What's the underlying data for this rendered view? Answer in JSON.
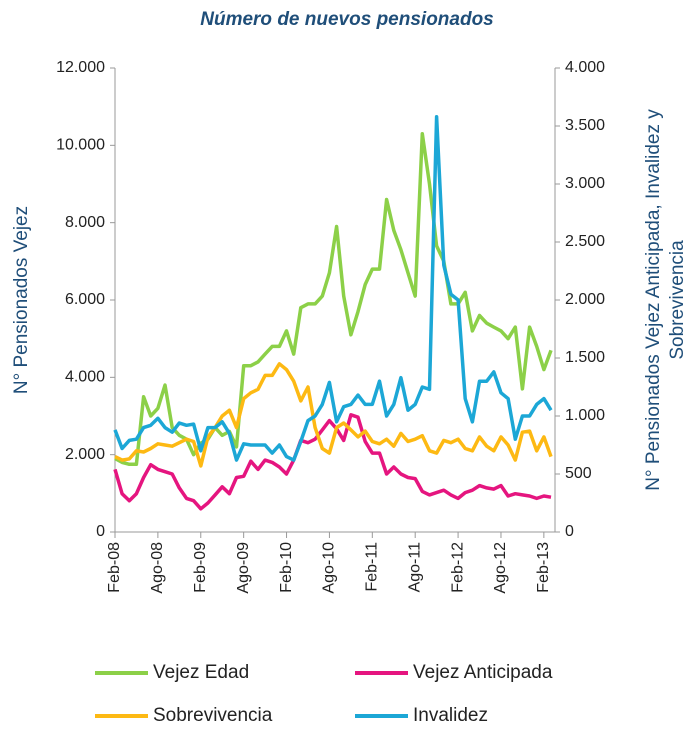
{
  "chart_data": {
    "type": "line",
    "title": "Número de nuevos pensionados",
    "ylabel": "N° Pensionados Vejez",
    "y2label": [
      "N° Pensionados Vejez Anticipada, Invalidez y",
      "Sobrevivencia"
    ],
    "categories": [
      "Feb-08",
      null,
      null,
      null,
      null,
      null,
      "Ago-08",
      null,
      null,
      null,
      null,
      null,
      "Feb-09",
      null,
      null,
      null,
      null,
      null,
      "Ago-09",
      null,
      null,
      null,
      null,
      null,
      "Feb-10",
      null,
      null,
      null,
      null,
      null,
      "Ago-10",
      null,
      null,
      null,
      null,
      null,
      "Feb-11",
      null,
      null,
      null,
      null,
      null,
      "Ago-11",
      null,
      null,
      null,
      null,
      null,
      "Feb-12",
      null,
      null,
      null,
      null,
      null,
      "Ago-12",
      null,
      null,
      null,
      null,
      null,
      "Feb-13",
      null
    ],
    "ylim": [
      0,
      12000
    ],
    "yticks": [
      0,
      {
        "value": 2000,
        "label": "2.000"
      },
      {
        "value": 4000,
        "label": "4.000"
      },
      {
        "value": 6000,
        "label": "6.000"
      },
      {
        "value": 8000,
        "label": "8.000"
      },
      {
        "value": 10000,
        "label": "10.000"
      },
      {
        "value": 12000,
        "label": "12.000"
      }
    ],
    "y2lim": [
      0,
      4000
    ],
    "y2ticks": [
      0,
      500,
      {
        "value": 1000,
        "label": "1.000"
      },
      {
        "value": 1500,
        "label": "1.500"
      },
      {
        "value": 2000,
        "label": "2.000"
      },
      {
        "value": 2500,
        "label": "2.500"
      },
      {
        "value": 3000,
        "label": "3.000"
      },
      {
        "value": 3500,
        "label": "3.500"
      },
      {
        "value": 4000,
        "label": "4.000"
      }
    ],
    "grid": false,
    "legend": "bottom",
    "series": [
      {
        "name": "Vejez Edad",
        "color": "#8cd048",
        "values": [
          1900,
          1800,
          1750,
          1750,
          3500,
          3000,
          3200,
          3800,
          2700,
          2500,
          2400,
          2000,
          2300,
          2400,
          2700,
          2500,
          2600,
          2200,
          4300,
          4300,
          4400,
          4600,
          4800,
          4800,
          5200,
          4600,
          5800,
          5900,
          5900,
          6100,
          6700,
          7900,
          6100,
          5100,
          5700,
          6400,
          6800,
          6800,
          8600,
          7800,
          7300,
          6700,
          6100,
          10300,
          9000,
          7400,
          7000,
          5900,
          5900,
          6200,
          5200,
          5600,
          5400,
          5300,
          5200,
          5000,
          5300,
          3700,
          5300,
          4800,
          4200,
          4700
        ]
      },
      {
        "name": "Vejez Anticipada",
        "color": "#e5157f",
        "axis": "y2",
        "values": [
          540,
          330,
          270,
          330,
          470,
          580,
          540,
          520,
          500,
          380,
          290,
          270,
          200,
          250,
          320,
          390,
          330,
          470,
          480,
          610,
          540,
          620,
          600,
          560,
          500,
          620,
          790,
          770,
          800,
          880,
          960,
          890,
          790,
          1010,
          990,
          780,
          680,
          680,
          500,
          560,
          500,
          470,
          460,
          350,
          320,
          340,
          360,
          320,
          290,
          340,
          360,
          400,
          380,
          370,
          400,
          310,
          330,
          320,
          310,
          290,
          310,
          300
        ]
      },
      {
        "name": "Sobrevivencia",
        "color": "#fdb913",
        "axis": "y2",
        "values": [
          650,
          620,
          630,
          700,
          690,
          720,
          760,
          750,
          740,
          770,
          800,
          780,
          570,
          820,
          900,
          1000,
          1050,
          900,
          1150,
          1200,
          1230,
          1350,
          1350,
          1450,
          1400,
          1300,
          1130,
          1250,
          900,
          720,
          680,
          900,
          940,
          880,
          820,
          870,
          780,
          760,
          800,
          740,
          850,
          780,
          800,
          830,
          700,
          680,
          790,
          770,
          800,
          720,
          700,
          820,
          740,
          700,
          820,
          750,
          620,
          860,
          870,
          700,
          820,
          650
        ]
      },
      {
        "name": "Invalidez",
        "color": "#1ca7d6",
        "axis": "y2",
        "values": [
          880,
          720,
          790,
          800,
          900,
          920,
          980,
          900,
          860,
          940,
          920,
          930,
          700,
          900,
          900,
          950,
          850,
          620,
          760,
          750,
          750,
          750,
          680,
          750,
          650,
          620,
          780,
          960,
          1000,
          1100,
          1290,
          950,
          1080,
          1100,
          1180,
          1100,
          1100,
          1300,
          1000,
          1100,
          1330,
          1050,
          1100,
          1250,
          1230,
          3580,
          2300,
          2050,
          2000,
          1150,
          950,
          1300,
          1300,
          1380,
          1200,
          1150,
          800,
          1000,
          1000,
          1100,
          1150,
          1050
        ]
      }
    ]
  }
}
